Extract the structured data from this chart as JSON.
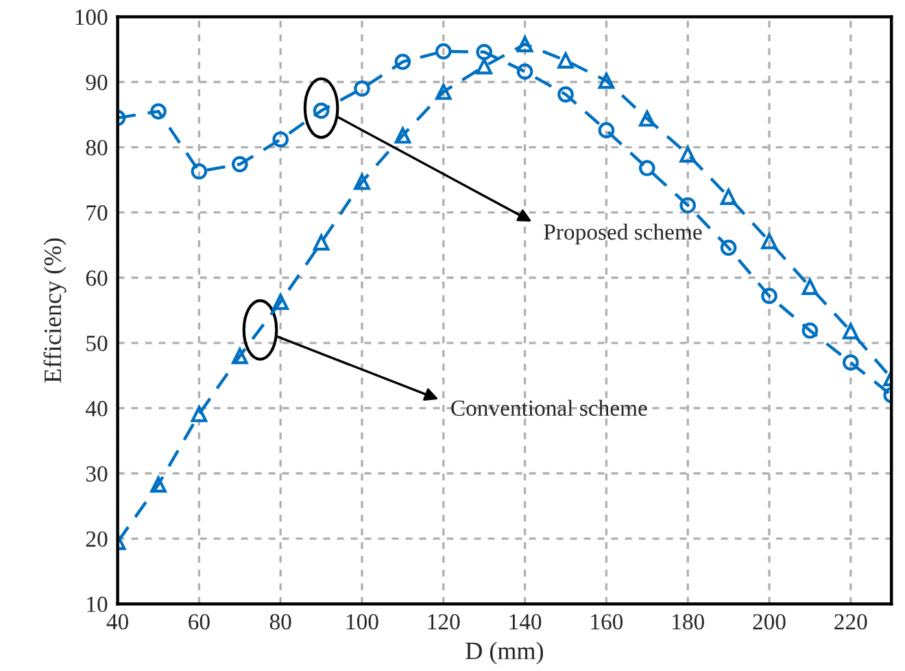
{
  "chart_data": {
    "type": "line",
    "xlabel": "D (mm)",
    "ylabel": "Efficiency (%)",
    "x": [
      40,
      50,
      60,
      70,
      80,
      90,
      100,
      110,
      120,
      130,
      140,
      150,
      160,
      170,
      180,
      190,
      200,
      210,
      220,
      230
    ],
    "series": [
      {
        "color": "#0070c0",
        "marker": "circle",
        "values": [
          84.5,
          85.5,
          76.3,
          77.4,
          81.2,
          85.6,
          89,
          93.1,
          94.7,
          94.6,
          91.6,
          88.1,
          82.6,
          76.8,
          71.1,
          64.6,
          57.2,
          51.9,
          47,
          42
        ]
      },
      {
        "color": "#0070c0",
        "marker": "triangle",
        "values": [
          19.5,
          28.3,
          39.1,
          48,
          56.3,
          65.4,
          74.7,
          81.8,
          88.5,
          92.4,
          95.8,
          93.3,
          90.2,
          84.4,
          78.9,
          72.4,
          65.6,
          58.6,
          51.8,
          44.6
        ]
      }
    ],
    "line_style": "dashed",
    "xlim": [
      40,
      230
    ],
    "xticks": [
      40,
      60,
      80,
      100,
      120,
      140,
      160,
      180,
      200,
      220
    ],
    "ylim": [
      10,
      100
    ],
    "yticks": [
      10,
      20,
      30,
      40,
      50,
      60,
      70,
      80,
      90,
      100
    ],
    "grid": true,
    "legend": false,
    "annotations": [
      "Proposed scheme",
      "Conventional scheme"
    ]
  }
}
